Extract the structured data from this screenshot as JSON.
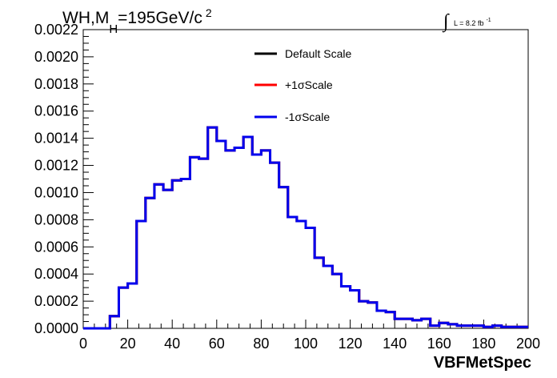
{
  "chart_data": {
    "type": "line",
    "title_main": "WH,M",
    "title_sub": "H",
    "title_rest": "=195GeV/c",
    "title_sup": "2",
    "lumi_integral": "∫",
    "lumi_text": "L = 8.2 fb",
    "lumi_sup": "-1",
    "xlabel": "VBFMetSpec",
    "ylabel": "",
    "xlim": [
      0,
      200
    ],
    "ylim": [
      0,
      0.0022
    ],
    "x_ticks": [
      0,
      20,
      40,
      60,
      80,
      100,
      120,
      140,
      160,
      180,
      200
    ],
    "x_tick_labels": [
      "0",
      "20",
      "40",
      "60",
      "80",
      "100",
      "120",
      "140",
      "160",
      "180",
      "200"
    ],
    "y_ticks": [
      0,
      0.0002,
      0.0004,
      0.0006,
      0.0008,
      0.001,
      0.0012,
      0.0014,
      0.0016,
      0.0018,
      0.002,
      0.0022
    ],
    "y_tick_labels": [
      "0.0000",
      "0.0002",
      "0.0004",
      "0.0006",
      "0.0008",
      "0.0010",
      "0.0012",
      "0.0014",
      "0.0016",
      "0.0018",
      "0.0020",
      "0.0022"
    ],
    "grid": false,
    "legend_position": "top-right",
    "bin_edges": [
      0,
      4,
      8,
      12,
      16,
      20,
      24,
      28,
      32,
      36,
      40,
      44,
      48,
      52,
      56,
      60,
      64,
      68,
      72,
      76,
      80,
      84,
      88,
      92,
      96,
      100,
      104,
      108,
      112,
      116,
      120,
      124,
      128,
      132,
      136,
      140,
      144,
      148,
      152,
      156,
      160,
      164,
      168,
      172,
      176,
      180,
      184,
      188,
      192,
      196,
      200
    ],
    "series": [
      {
        "name": "Default Scale",
        "color": "#000000",
        "values": [
          0,
          0,
          0,
          9e-05,
          0.0003,
          0.00033,
          0.00079,
          0.00096,
          0.00106,
          0.00102,
          0.00109,
          0.0011,
          0.00126,
          0.00125,
          0.00148,
          0.00138,
          0.00131,
          0.00133,
          0.00141,
          0.00128,
          0.00131,
          0.00122,
          0.00104,
          0.00082,
          0.00079,
          0.00074,
          0.00052,
          0.00046,
          0.0004,
          0.00031,
          0.00028,
          0.0002,
          0.00019,
          0.00013,
          0.00012,
          7e-05,
          7e-05,
          6e-05,
          7e-05,
          2e-05,
          4e-05,
          3e-05,
          2e-05,
          2e-05,
          2e-05,
          1e-05,
          2e-05,
          1e-05,
          1e-05,
          1e-05
        ]
      },
      {
        "name": "+1σScale",
        "color": "#ff0000",
        "values": [
          0,
          0,
          0,
          9e-05,
          0.0003,
          0.00033,
          0.00079,
          0.00096,
          0.00106,
          0.00102,
          0.00109,
          0.0011,
          0.00126,
          0.00125,
          0.00148,
          0.00138,
          0.00131,
          0.00133,
          0.00141,
          0.00128,
          0.00131,
          0.00122,
          0.00104,
          0.00082,
          0.00079,
          0.00074,
          0.00052,
          0.00046,
          0.0004,
          0.00031,
          0.00028,
          0.0002,
          0.00019,
          0.00013,
          0.00012,
          7e-05,
          7e-05,
          6e-05,
          7e-05,
          2e-05,
          4e-05,
          3e-05,
          2e-05,
          2e-05,
          2e-05,
          1e-05,
          2e-05,
          1e-05,
          1e-05,
          1e-05
        ]
      },
      {
        "name": "-1σScale",
        "color": "#0000ee",
        "values": [
          0,
          0,
          0,
          9e-05,
          0.0003,
          0.00033,
          0.00079,
          0.00096,
          0.00106,
          0.00102,
          0.00109,
          0.0011,
          0.00126,
          0.00125,
          0.00148,
          0.00138,
          0.00131,
          0.00133,
          0.00141,
          0.00128,
          0.00131,
          0.00122,
          0.00104,
          0.00082,
          0.00079,
          0.00074,
          0.00052,
          0.00046,
          0.0004,
          0.00031,
          0.00028,
          0.0002,
          0.00019,
          0.00013,
          0.00012,
          7e-05,
          7e-05,
          6e-05,
          7e-05,
          2e-05,
          4e-05,
          3e-05,
          2e-05,
          2e-05,
          2e-05,
          1e-05,
          2e-05,
          1e-05,
          1e-05,
          1e-05
        ]
      }
    ]
  }
}
